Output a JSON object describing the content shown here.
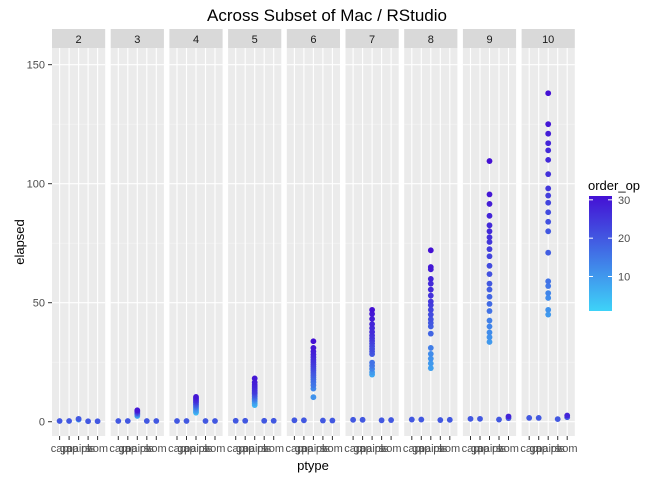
{
  "chart_data": {
    "type": "scatter",
    "title": "Across Subset of Mac / RStudio",
    "xlabel": "ptype",
    "ylabel": "elapsed",
    "ylim": [
      -6,
      157
    ],
    "y_ticks": [
      0,
      50,
      100,
      150
    ],
    "x_categories": [
      "cap",
      "gap",
      "pair",
      "pls",
      "som"
    ],
    "x_tick_labels": [
      "cap",
      "gap",
      "pairs",
      "pls",
      "som"
    ],
    "facet_var": "n",
    "facets": [
      "2",
      "3",
      "4",
      "5",
      "6",
      "7",
      "8",
      "9",
      "10"
    ],
    "legend": {
      "title": "order_op",
      "ticks": [
        10,
        20,
        30
      ],
      "range": [
        1,
        31
      ],
      "color_low": "#3ed3f8",
      "color_high": "#4410d4",
      "position": "right"
    },
    "grid": true,
    "panels": [
      {
        "n": "2",
        "points": {
          "cap": [
            [
              0.3,
              20
            ]
          ],
          "gap": [
            [
              0.3,
              20
            ]
          ],
          "pair": [
            [
              1.2,
              20
            ],
            [
              0.9,
              10
            ]
          ],
          "pls": [
            [
              0.2,
              20
            ]
          ],
          "som": [
            [
              0.2,
              20
            ]
          ]
        }
      },
      {
        "n": "3",
        "points": {
          "cap": [
            [
              0.3,
              20
            ]
          ],
          "gap": [
            [
              0.3,
              20
            ]
          ],
          "pair": [
            [
              4.8,
              30
            ],
            [
              4.2,
              26
            ],
            [
              3.6,
              20
            ],
            [
              3.0,
              14
            ],
            [
              2.4,
              8
            ]
          ],
          "pls": [
            [
              0.3,
              20
            ]
          ],
          "som": [
            [
              0.3,
              20
            ]
          ]
        }
      },
      {
        "n": "4",
        "points": {
          "cap": [
            [
              0.3,
              20
            ]
          ],
          "gap": [
            [
              0.3,
              20
            ]
          ],
          "pair": [
            [
              10.4,
              30
            ],
            [
              9.8,
              28
            ],
            [
              9.2,
              27
            ],
            [
              8.6,
              25
            ],
            [
              8.0,
              23
            ],
            [
              7.4,
              20
            ],
            [
              6.8,
              18
            ],
            [
              6.2,
              15
            ],
            [
              5.6,
              12
            ],
            [
              5.0,
              10
            ],
            [
              4.4,
              8
            ],
            [
              3.8,
              5
            ]
          ],
          "pls": [
            [
              0.3,
              20
            ]
          ],
          "som": [
            [
              0.3,
              20
            ]
          ]
        }
      },
      {
        "n": "5",
        "points": {
          "cap": [
            [
              0.4,
              20
            ]
          ],
          "gap": [
            [
              0.4,
              20
            ]
          ],
          "pair": [
            [
              18.2,
              30
            ],
            [
              16.5,
              29
            ],
            [
              15.4,
              28
            ],
            [
              14.6,
              27
            ],
            [
              13.8,
              26
            ],
            [
              13.0,
              25
            ],
            [
              12.4,
              24
            ],
            [
              11.8,
              22
            ],
            [
              11.2,
              20
            ],
            [
              10.5,
              18
            ],
            [
              9.8,
              15
            ],
            [
              9.2,
              13
            ],
            [
              8.5,
              10
            ],
            [
              7.8,
              8
            ],
            [
              7.0,
              6
            ]
          ],
          "pls": [
            [
              0.4,
              20
            ]
          ],
          "som": [
            [
              0.4,
              20
            ]
          ]
        }
      },
      {
        "n": "6",
        "points": {
          "cap": [
            [
              0.6,
              20
            ]
          ],
          "gap": [
            [
              0.6,
              20
            ]
          ],
          "pair": [
            [
              33.8,
              31
            ],
            [
              31.0,
              30
            ],
            [
              29.5,
              29
            ],
            [
              28.2,
              28
            ],
            [
              27.1,
              27
            ],
            [
              26.0,
              26
            ],
            [
              25.0,
              25
            ],
            [
              24.0,
              24
            ],
            [
              23.1,
              23
            ],
            [
              22.2,
              22
            ],
            [
              21.4,
              21
            ],
            [
              20.5,
              20
            ],
            [
              19.6,
              19
            ],
            [
              18.7,
              18
            ],
            [
              17.7,
              17
            ],
            [
              16.6,
              16
            ],
            [
              15.3,
              15
            ],
            [
              13.9,
              13
            ],
            [
              10.3,
              11
            ]
          ],
          "pls": [
            [
              0.5,
              20
            ]
          ],
          "som": [
            [
              0.5,
              20
            ]
          ]
        }
      },
      {
        "n": "7",
        "points": {
          "cap": [
            [
              0.8,
              20
            ]
          ],
          "gap": [
            [
              0.8,
              20
            ]
          ],
          "pair": [
            [
              47.0,
              31
            ],
            [
              45.3,
              30
            ],
            [
              43.2,
              29
            ],
            [
              41.0,
              28
            ],
            [
              39.3,
              27
            ],
            [
              37.7,
              27
            ],
            [
              36.2,
              26
            ],
            [
              35.0,
              25
            ],
            [
              33.9,
              24
            ],
            [
              32.8,
              23
            ],
            [
              31.7,
              22
            ],
            [
              30.6,
              22
            ],
            [
              29.5,
              21
            ],
            [
              28.4,
              20
            ],
            [
              24.8,
              16
            ],
            [
              23.5,
              15
            ],
            [
              22.2,
              13
            ],
            [
              20.8,
              10
            ],
            [
              19.8,
              8
            ]
          ],
          "pls": [
            [
              0.6,
              20
            ]
          ],
          "som": [
            [
              0.7,
              20
            ]
          ]
        }
      },
      {
        "n": "8",
        "points": {
          "cap": [
            [
              0.9,
              20
            ]
          ],
          "gap": [
            [
              0.9,
              20
            ]
          ],
          "pair": [
            [
              72.0,
              31
            ],
            [
              65.0,
              30
            ],
            [
              64.0,
              29
            ],
            [
              60.0,
              28
            ],
            [
              58.0,
              27
            ],
            [
              55.5,
              27
            ],
            [
              53.0,
              26
            ],
            [
              50.5,
              25
            ],
            [
              49.0,
              24
            ],
            [
              47.0,
              23
            ],
            [
              45.0,
              22
            ],
            [
              43.0,
              21
            ],
            [
              41.5,
              20
            ],
            [
              40.0,
              19
            ],
            [
              37.0,
              18
            ],
            [
              31.0,
              14
            ],
            [
              28.5,
              12
            ],
            [
              26.5,
              11
            ],
            [
              24.5,
              10
            ],
            [
              22.5,
              9
            ]
          ],
          "pls": [
            [
              0.7,
              20
            ]
          ],
          "som": [
            [
              0.8,
              20
            ]
          ]
        }
      },
      {
        "n": "9",
        "points": {
          "cap": [
            [
              1.2,
              20
            ]
          ],
          "gap": [
            [
              1.2,
              20
            ]
          ],
          "pair": [
            [
              109.5,
              31
            ],
            [
              95.5,
              30
            ],
            [
              91.5,
              29
            ],
            [
              86.5,
              28
            ],
            [
              82.5,
              27
            ],
            [
              80.0,
              27
            ],
            [
              77.5,
              26
            ],
            [
              75.5,
              25
            ],
            [
              72.5,
              24
            ],
            [
              69.5,
              23
            ],
            [
              65.5,
              22
            ],
            [
              62.0,
              21
            ],
            [
              58.0,
              20
            ],
            [
              55.5,
              19
            ],
            [
              52.5,
              18
            ],
            [
              49.5,
              17
            ],
            [
              46.5,
              16
            ],
            [
              42.5,
              14
            ],
            [
              40.0,
              13
            ],
            [
              37.5,
              12
            ],
            [
              35.5,
              11
            ],
            [
              33.5,
              10
            ]
          ],
          "pls": [
            [
              0.9,
              20
            ]
          ],
          "som": [
            [
              1.5,
              20
            ],
            [
              2.2,
              28
            ]
          ]
        }
      },
      {
        "n": "10",
        "points": {
          "cap": [
            [
              1.6,
              20
            ]
          ],
          "gap": [
            [
              1.6,
              20
            ]
          ],
          "pair": [
            [
              138.0,
              31
            ],
            [
              125.0,
              30
            ],
            [
              121.0,
              29
            ],
            [
              117.0,
              28
            ],
            [
              114.0,
              27
            ],
            [
              110.0,
              27
            ],
            [
              104.0,
              26
            ],
            [
              98.0,
              25
            ],
            [
              95.0,
              24
            ],
            [
              92.0,
              23
            ],
            [
              88.0,
              22
            ],
            [
              84.0,
              21
            ],
            [
              80.0,
              20
            ],
            [
              71.0,
              19
            ],
            [
              59.0,
              16
            ],
            [
              57.0,
              15
            ],
            [
              54.0,
              13
            ],
            [
              52.0,
              12
            ],
            [
              47.0,
              11
            ],
            [
              45.0,
              10
            ]
          ],
          "pls": [
            [
              1.1,
              20
            ]
          ],
          "som": [
            [
              1.9,
              20
            ],
            [
              2.6,
              28
            ]
          ]
        }
      }
    ]
  }
}
